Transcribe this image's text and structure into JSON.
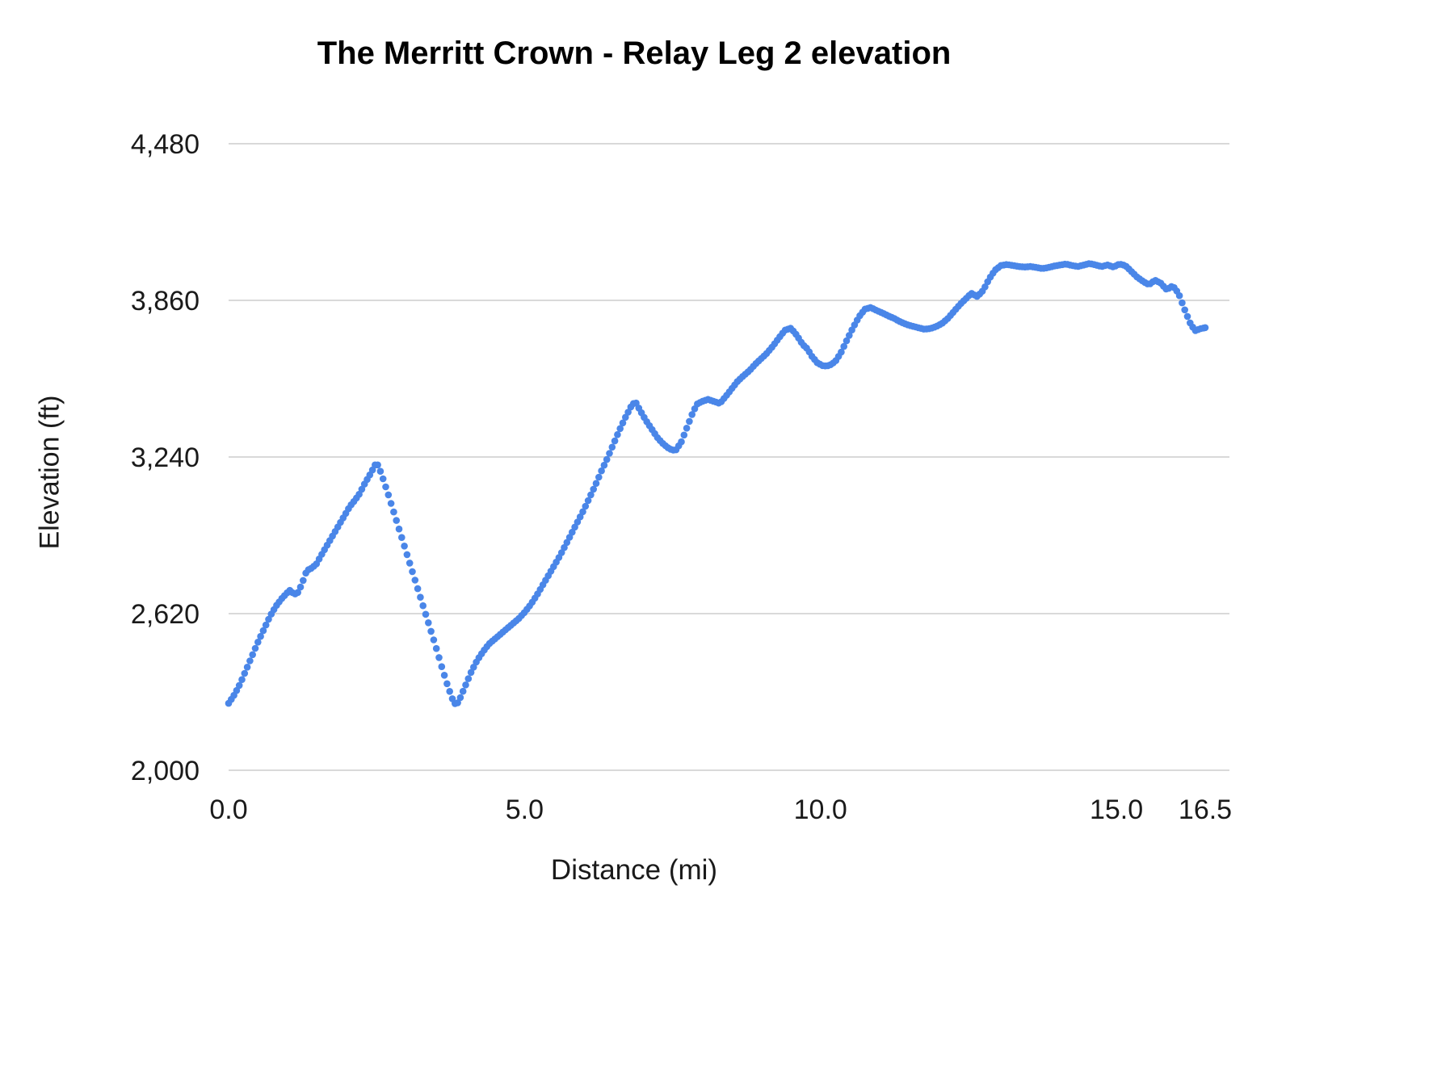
{
  "chart_data": {
    "type": "line",
    "title": "The Merritt Crown - Relay Leg 2 elevation",
    "xlabel": "Distance (mi)",
    "ylabel": "Elevation (ft)",
    "xlim": [
      0,
      16.5
    ],
    "ylim": [
      2000,
      4480
    ],
    "x_ticks": [
      0,
      5,
      10,
      15,
      16.5
    ],
    "x_tick_labels": [
      "0.0",
      "5.0",
      "10.0",
      "15.0",
      "16.5"
    ],
    "y_ticks": [
      2000,
      2620,
      3240,
      3860,
      4480
    ],
    "y_tick_labels": [
      "2,000",
      "2,620",
      "3,240",
      "3,860",
      "4,480"
    ],
    "grid": "horizontal-only",
    "legend": "none",
    "marker_style": "dots",
    "colors": {
      "line": "#4a86e8",
      "grid": "#d9d9d9",
      "text": "#1a1a1a",
      "background": "#ffffff"
    },
    "series": [
      {
        "name": "Elevation",
        "x": [
          0,
          0.1,
          0.2,
          0.3,
          0.4,
          0.5,
          0.6,
          0.7,
          0.8,
          0.9,
          1.0,
          1.05,
          1.1,
          1.18,
          1.25,
          1.32,
          1.4,
          1.48,
          1.55,
          1.65,
          1.75,
          1.85,
          1.95,
          2.05,
          2.12,
          2.2,
          2.3,
          2.4,
          2.5,
          2.58,
          2.7,
          2.8,
          2.9,
          3.0,
          3.1,
          3.2,
          3.3,
          3.4,
          3.5,
          3.6,
          3.7,
          3.8,
          3.85,
          3.92,
          4.0,
          4.1,
          4.2,
          4.3,
          4.4,
          4.5,
          4.6,
          4.7,
          4.8,
          4.9,
          5.0,
          5.1,
          5.2,
          5.3,
          5.4,
          5.5,
          5.6,
          5.7,
          5.8,
          5.9,
          6.0,
          6.1,
          6.2,
          6.3,
          6.4,
          6.5,
          6.6,
          6.7,
          6.8,
          6.87,
          6.95,
          7.05,
          7.15,
          7.25,
          7.35,
          7.45,
          7.55,
          7.65,
          7.75,
          7.85,
          7.92,
          8.0,
          8.1,
          8.2,
          8.3,
          8.4,
          8.5,
          8.6,
          8.7,
          8.8,
          8.9,
          9.0,
          9.1,
          9.2,
          9.3,
          9.4,
          9.5,
          9.6,
          9.7,
          9.78,
          9.85,
          9.95,
          10.05,
          10.15,
          10.25,
          10.35,
          10.45,
          10.55,
          10.65,
          10.75,
          10.85,
          10.95,
          11.05,
          11.15,
          11.25,
          11.35,
          11.45,
          11.55,
          11.65,
          11.75,
          11.85,
          11.95,
          12.05,
          12.15,
          12.25,
          12.35,
          12.45,
          12.55,
          12.65,
          12.75,
          12.85,
          12.95,
          13.05,
          13.15,
          13.25,
          13.35,
          13.45,
          13.55,
          13.65,
          13.75,
          13.85,
          13.95,
          14.05,
          14.15,
          14.25,
          14.35,
          14.45,
          14.55,
          14.65,
          14.75,
          14.85,
          14.95,
          15.05,
          15.15,
          15.25,
          15.35,
          15.45,
          15.55,
          15.65,
          15.75,
          15.85,
          15.95,
          16.05,
          16.15,
          16.25,
          16.33,
          16.42,
          16.5
        ],
        "y": [
          2265,
          2300,
          2345,
          2400,
          2455,
          2510,
          2560,
          2610,
          2650,
          2680,
          2705,
          2715,
          2695,
          2705,
          2745,
          2790,
          2800,
          2815,
          2845,
          2885,
          2925,
          2965,
          3005,
          3045,
          3065,
          3090,
          3135,
          3175,
          3220,
          3175,
          3090,
          3015,
          2940,
          2865,
          2790,
          2715,
          2640,
          2565,
          2490,
          2410,
          2335,
          2270,
          2258,
          2290,
          2335,
          2390,
          2435,
          2470,
          2500,
          2520,
          2540,
          2560,
          2580,
          2600,
          2625,
          2655,
          2690,
          2730,
          2770,
          2810,
          2850,
          2895,
          2940,
          2985,
          3030,
          3080,
          3130,
          3185,
          3235,
          3290,
          3345,
          3395,
          3440,
          3460,
          3425,
          3385,
          3350,
          3315,
          3290,
          3272,
          3265,
          3300,
          3360,
          3420,
          3450,
          3460,
          3468,
          3460,
          3452,
          3480,
          3510,
          3540,
          3562,
          3582,
          3608,
          3630,
          3652,
          3680,
          3712,
          3742,
          3750,
          3722,
          3685,
          3668,
          3640,
          3612,
          3600,
          3602,
          3618,
          3655,
          3705,
          3752,
          3795,
          3825,
          3832,
          3820,
          3810,
          3798,
          3788,
          3775,
          3765,
          3758,
          3752,
          3746,
          3748,
          3756,
          3768,
          3788,
          3815,
          3842,
          3865,
          3888,
          3875,
          3900,
          3945,
          3980,
          3998,
          4002,
          3998,
          3994,
          3992,
          3994,
          3990,
          3986,
          3990,
          3996,
          4000,
          4004,
          3998,
          3994,
          4000,
          4006,
          4000,
          3994,
          4000,
          3992,
          4004,
          3998,
          3975,
          3952,
          3935,
          3922,
          3940,
          3928,
          3902,
          3918,
          3888,
          3825,
          3768,
          3740,
          3748,
          3752
        ]
      }
    ]
  }
}
